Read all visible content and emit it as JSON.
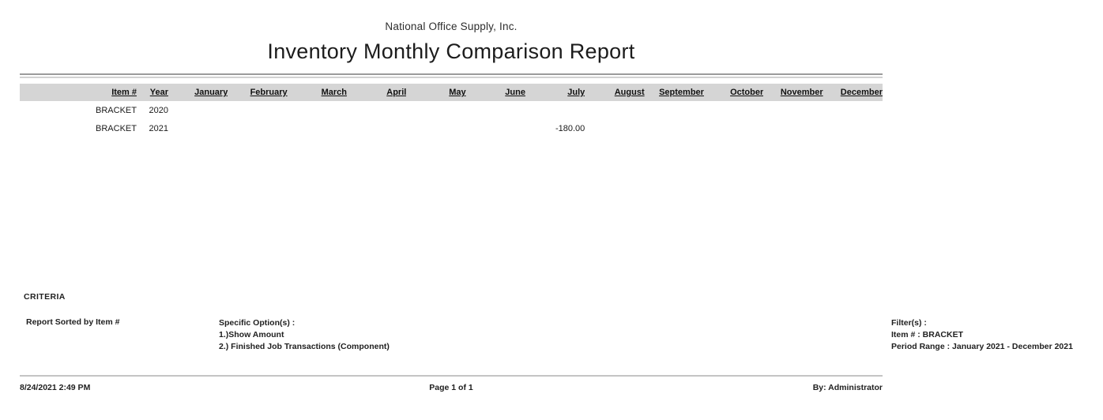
{
  "report": {
    "company": "National Office Supply, Inc.",
    "title": "Inventory Monthly Comparison Report"
  },
  "table": {
    "columns": [
      "Item #",
      "Year",
      "January",
      "February",
      "March",
      "April",
      "May",
      "June",
      "July",
      "August",
      "September",
      "October",
      "November",
      "December"
    ],
    "rows": [
      {
        "item": "BRACKET",
        "year": "2020",
        "values": [
          "",
          "",
          "",
          "",
          "",
          "",
          "",
          "",
          "",
          "",
          "",
          ""
        ]
      },
      {
        "item": "BRACKET",
        "year": "2021",
        "values": [
          "",
          "",
          "",
          "",
          "",
          "",
          "-180.00",
          "",
          "",
          "",
          "",
          ""
        ]
      }
    ]
  },
  "criteria": {
    "heading": "CRITERIA",
    "sorted_by": "Report Sorted by Item #",
    "specific_options_label": "Specific Option(s) :",
    "specific_options": [
      "1.)Show Amount",
      "2.) Finished Job Transactions (Component)"
    ]
  },
  "filters": {
    "label": "Filter(s) :",
    "items": [
      "Item # : BRACKET",
      "Period Range : January 2021 - December 2021"
    ]
  },
  "footer": {
    "datetime": "8/24/2021 2:49 PM",
    "page": "Page 1 of 1",
    "by": "By: Administrator"
  },
  "colors": {
    "link": "#0000ee",
    "header_bg": "#d5d5d5"
  }
}
